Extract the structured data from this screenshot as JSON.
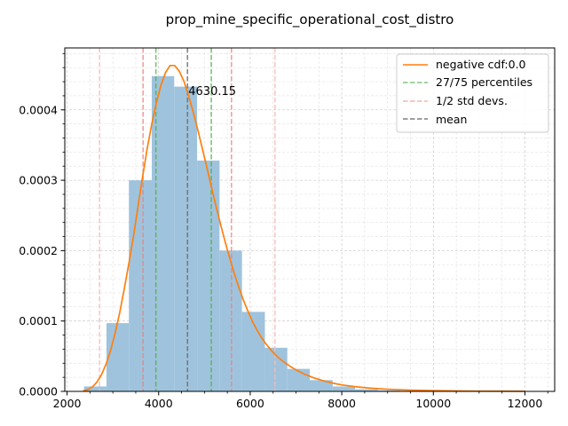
{
  "chart_data": {
    "type": "histogram",
    "title": "prop_mine_specific_operational_cost_distro",
    "xlabel": "",
    "ylabel": "",
    "xlim": [
      1950,
      12650
    ],
    "ylim": [
      0,
      0.000488
    ],
    "x_ticks": [
      2000,
      4000,
      6000,
      8000,
      10000,
      12000
    ],
    "x_tick_labels": [
      "2000",
      "4000",
      "6000",
      "8000",
      "10000",
      "12000"
    ],
    "y_ticks": [
      0,
      0.0001,
      0.0002,
      0.0003,
      0.0004
    ],
    "y_tick_labels": [
      "0.0000",
      "0.0001",
      "0.0002",
      "0.0003",
      "0.0004"
    ],
    "grid": true,
    "bins": [
      {
        "x0": 2370,
        "x1": 2860,
        "value": 7e-06
      },
      {
        "x0": 2860,
        "x1": 3350,
        "value": 9.7e-05
      },
      {
        "x0": 3350,
        "x1": 3850,
        "value": 0.0003
      },
      {
        "x0": 3850,
        "x1": 4340,
        "value": 0.000448
      },
      {
        "x0": 4340,
        "x1": 4840,
        "value": 0.000433
      },
      {
        "x0": 4840,
        "x1": 5330,
        "value": 0.000328
      },
      {
        "x0": 5330,
        "x1": 5820,
        "value": 0.0002
      },
      {
        "x0": 5820,
        "x1": 6320,
        "value": 0.000113
      },
      {
        "x0": 6320,
        "x1": 6810,
        "value": 6.2e-05
      },
      {
        "x0": 6810,
        "x1": 7300,
        "value": 3.2e-05
      },
      {
        "x0": 7300,
        "x1": 7800,
        "value": 1.6e-05
      },
      {
        "x0": 7800,
        "x1": 8290,
        "value": 7e-06
      },
      {
        "x0": 8290,
        "x1": 8790,
        "value": 3e-06
      },
      {
        "x0": 8790,
        "x1": 9280,
        "value": 1.5e-06
      },
      {
        "x0": 9280,
        "x1": 9770,
        "value": 8e-07
      },
      {
        "x0": 9770,
        "x1": 10270,
        "value": 4e-07
      },
      {
        "x0": 10270,
        "x1": 10760,
        "value": 3e-07
      },
      {
        "x0": 10760,
        "x1": 11250,
        "value": 2e-07
      },
      {
        "x0": 11250,
        "x1": 11750,
        "value": 1e-07
      },
      {
        "x0": 11750,
        "x1": 12240,
        "value": 1e-07
      }
    ],
    "curve": {
      "name": "negative cdf:0.0",
      "color": "#ff7f0e",
      "x": [
        2350,
        2450,
        2550,
        2650,
        2750,
        2850,
        2950,
        3050,
        3150,
        3250,
        3350,
        3450,
        3550,
        3650,
        3750,
        3850,
        3950,
        4050,
        4150,
        4250,
        4350,
        4450,
        4550,
        4650,
        4750,
        4850,
        4950,
        5050,
        5150,
        5250,
        5350,
        5450,
        5550,
        5650,
        5750,
        5850,
        5950,
        6050,
        6150,
        6250,
        6350,
        6450,
        6550,
        6650,
        6750,
        6850,
        7000,
        7200,
        7400,
        7600,
        7800,
        8000,
        8300,
        8600,
        9000,
        9500,
        10000,
        10500,
        11000,
        11500,
        12000
      ],
      "y": [
        8e-07,
        2.5e-06,
        6.2e-06,
        1.3e-05,
        2.35e-05,
        3.85e-05,
        5.8e-05,
        8.3e-05,
        0.000112,
        0.000146,
        0.000182,
        0.00022,
        0.000263,
        0.000305,
        0.000345,
        0.00038,
        0.00041,
        0.000435,
        0.000453,
        0.000463,
        0.000463,
        0.000455,
        0.000441,
        0.000421,
        0.000398,
        0.000373,
        0.000346,
        0.000319,
        0.000291,
        0.000264,
        0.000238,
        0.000213,
        0.00019,
        0.000168,
        0.000148,
        0.00013,
        0.000114,
        9.9e-05,
        8.7e-05,
        7.6e-05,
        6.7e-05,
        5.9e-05,
        5.2e-05,
        4.6e-05,
        4.1e-05,
        3.65e-05,
        3.05e-05,
        2.4e-05,
        1.9e-05,
        1.5e-05,
        1.18e-05,
        9.2e-06,
        6.6e-06,
        4.7e-06,
        3.1e-06,
        1.8e-06,
        1.1e-06,
        7e-07,
        4e-07,
        3e-07,
        2e-07
      ]
    },
    "vlines": [
      {
        "x": 3940,
        "group": "percentile"
      },
      {
        "x": 5150,
        "group": "percentile"
      },
      {
        "x": 3660,
        "group": "std1"
      },
      {
        "x": 5590,
        "group": "std1"
      },
      {
        "x": 2710,
        "group": "std2"
      },
      {
        "x": 6540,
        "group": "std2"
      },
      {
        "x": 4630.15,
        "group": "mean"
      }
    ],
    "mean_annotation": {
      "text": "4630.15",
      "x": 4630.15,
      "y": 0.00042
    },
    "legend": {
      "placement": "top-right",
      "entries": [
        {
          "label": "negative cdf:0.0",
          "style": "solid",
          "color": "#ff7f0e"
        },
        {
          "label": "27/75 percentiles",
          "style": "dashed",
          "color": "#4daf4a"
        },
        {
          "label": "1/2 std devs.",
          "style": "dashed",
          "color": "#f4a6a0"
        },
        {
          "label": "mean",
          "style": "dashed",
          "color": "#7f7f7f"
        }
      ]
    },
    "colors": {
      "bars": "#9fc3dd",
      "curve": "#ff7f0e",
      "percentile": "#4daf4a",
      "std1": "#e8837c",
      "std2": "#f4bcb8",
      "mean": "#6e6e6e",
      "grid": "#cccccc"
    }
  }
}
